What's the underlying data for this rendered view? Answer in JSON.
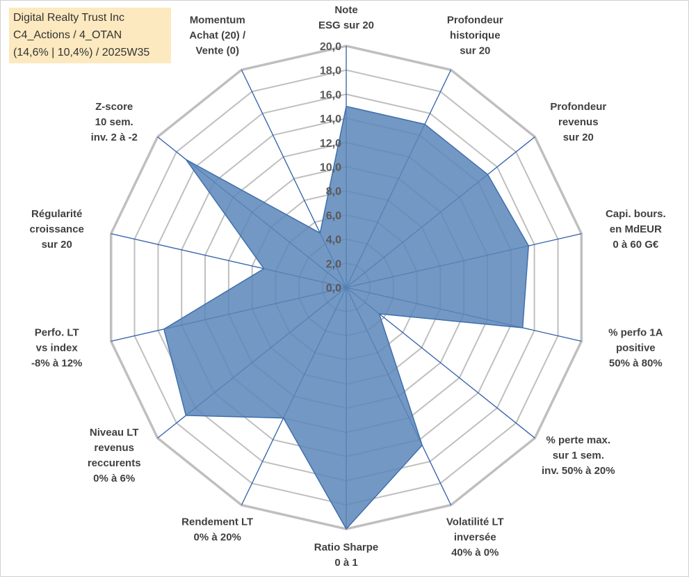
{
  "info_box": {
    "line1": "Digital Realty Trust Inc",
    "line2": "C4_Actions / 4_OTAN",
    "line3": "(14,6% | 10,4%) / 2025W35"
  },
  "colors": {
    "grid": "#bfbfbf",
    "spoke": "#2e5ea8",
    "fill": "#5b86b8",
    "stroke": "#3f6fad",
    "label": "#404040",
    "info_box_bg": "#fce9bf"
  },
  "chart_data": {
    "type": "radar",
    "range": [
      0,
      20
    ],
    "tick_step": 2,
    "grid": true,
    "tick_labels": [
      "0,0",
      "2,0",
      "4,0",
      "6,0",
      "8,0",
      "10,0",
      "12,0",
      "14,0",
      "16,0",
      "18,0",
      "20,0"
    ],
    "categories": [
      [
        "Note",
        "ESG sur 20"
      ],
      [
        "Profondeur",
        "historique",
        "sur 20"
      ],
      [
        "Profondeur",
        "revenus",
        "sur 20"
      ],
      [
        "Capi. bours.",
        "en MdEUR",
        "0 à 60 G€"
      ],
      [
        "% perfo 1A",
        "positive",
        "50% à 80%"
      ],
      [
        "% perte max.",
        "sur 1 sem.",
        "inv. 50% à 20%"
      ],
      [
        "Volatilité LT",
        "inversée",
        "40% à 0%"
      ],
      [
        "Ratio Sharpe",
        "0 à 1"
      ],
      [
        "Rendement LT",
        "0% à 20%"
      ],
      [
        "Niveau LT",
        "revenus",
        "reccurents",
        "0% à 6%"
      ],
      [
        "Perfo. LT",
        "vs index",
        "-8% à 12%"
      ],
      [
        "Régularité",
        "croissance",
        "sur 20"
      ],
      [
        "Z-score",
        "10 sem.",
        "inv. 2 à -2"
      ],
      [
        "Momentum",
        "Achat (20) /",
        "Vente (0)"
      ]
    ],
    "values": [
      15.0,
      15.0,
      15.0,
      15.5,
      15.0,
      3.5,
      14.5,
      20.0,
      12.0,
      17.0,
      15.5,
      7.0,
      17.0,
      5.0
    ]
  }
}
